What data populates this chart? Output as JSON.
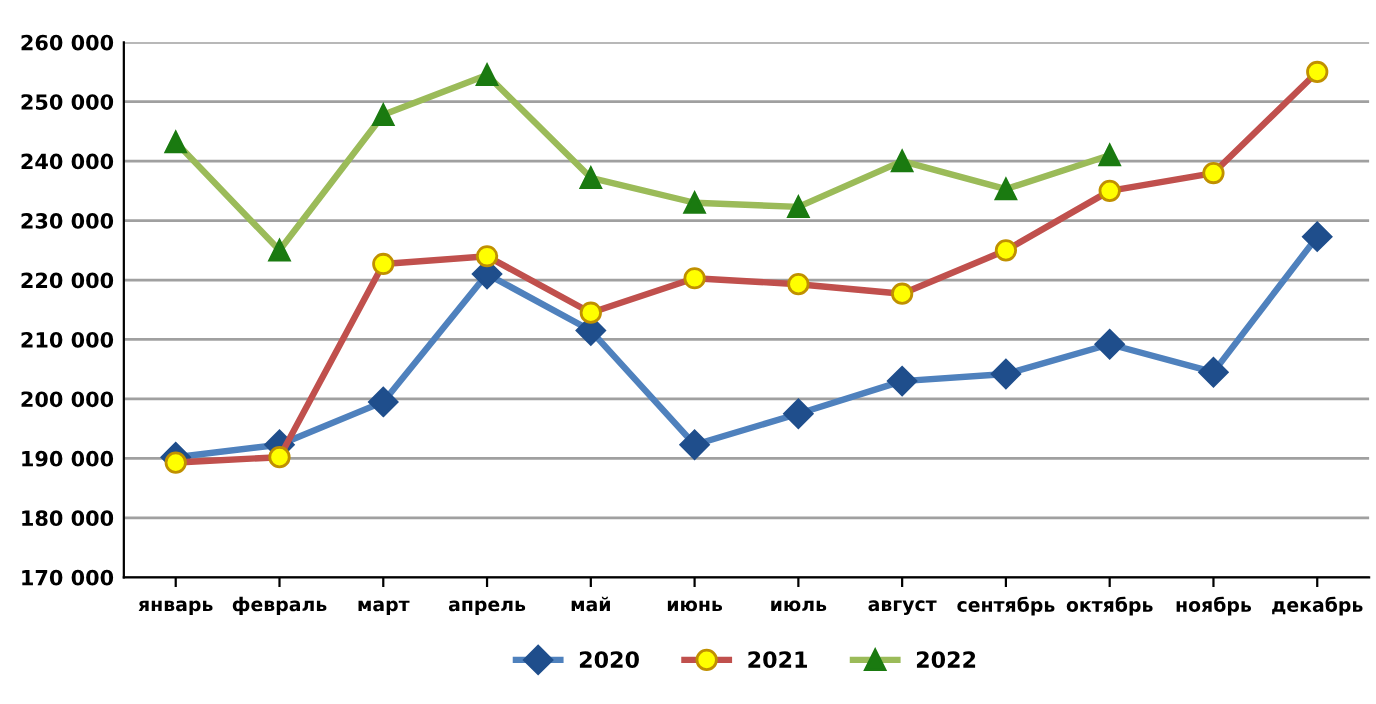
{
  "chart_data": {
    "type": "line",
    "categories": [
      "январь",
      "февраль",
      "март",
      "апрель",
      "май",
      "июнь",
      "июль",
      "август",
      "сентябрь",
      "октябрь",
      "ноябрь",
      "декабрь"
    ],
    "series": [
      {
        "name": "2020",
        "color": "#4f81bd",
        "marker": "diamond",
        "values": [
          190200,
          192300,
          199500,
          221000,
          211500,
          192300,
          197500,
          203000,
          204200,
          209200,
          204500,
          227300
        ]
      },
      {
        "name": "2021",
        "color": "#c0504d",
        "marker": "circle",
        "values": [
          189300,
          190200,
          222700,
          224000,
          214500,
          220300,
          219300,
          217700,
          225000,
          235000,
          238000,
          255000
        ]
      },
      {
        "name": "2022",
        "color": "#9bbb59",
        "marker": "triangle",
        "values": [
          243200,
          225000,
          247800,
          254500,
          237200,
          233000,
          232300,
          240000,
          235300,
          241000,
          null,
          null
        ]
      }
    ],
    "ylim": [
      170000,
      260000
    ],
    "yticks": [
      {
        "value": 170000,
        "label": "170 000"
      },
      {
        "value": 180000,
        "label": "180 000"
      },
      {
        "value": 190000,
        "label": "190 000"
      },
      {
        "value": 200000,
        "label": "200 000"
      },
      {
        "value": 210000,
        "label": "210 000"
      },
      {
        "value": 220000,
        "label": "220 000"
      },
      {
        "value": 230000,
        "label": "230 000"
      },
      {
        "value": 240000,
        "label": "240 000"
      },
      {
        "value": 250000,
        "label": "250 000"
      },
      {
        "value": 260000,
        "label": "260 000"
      }
    ],
    "grid": "y",
    "legend": "bottom",
    "line_style": "solid"
  }
}
